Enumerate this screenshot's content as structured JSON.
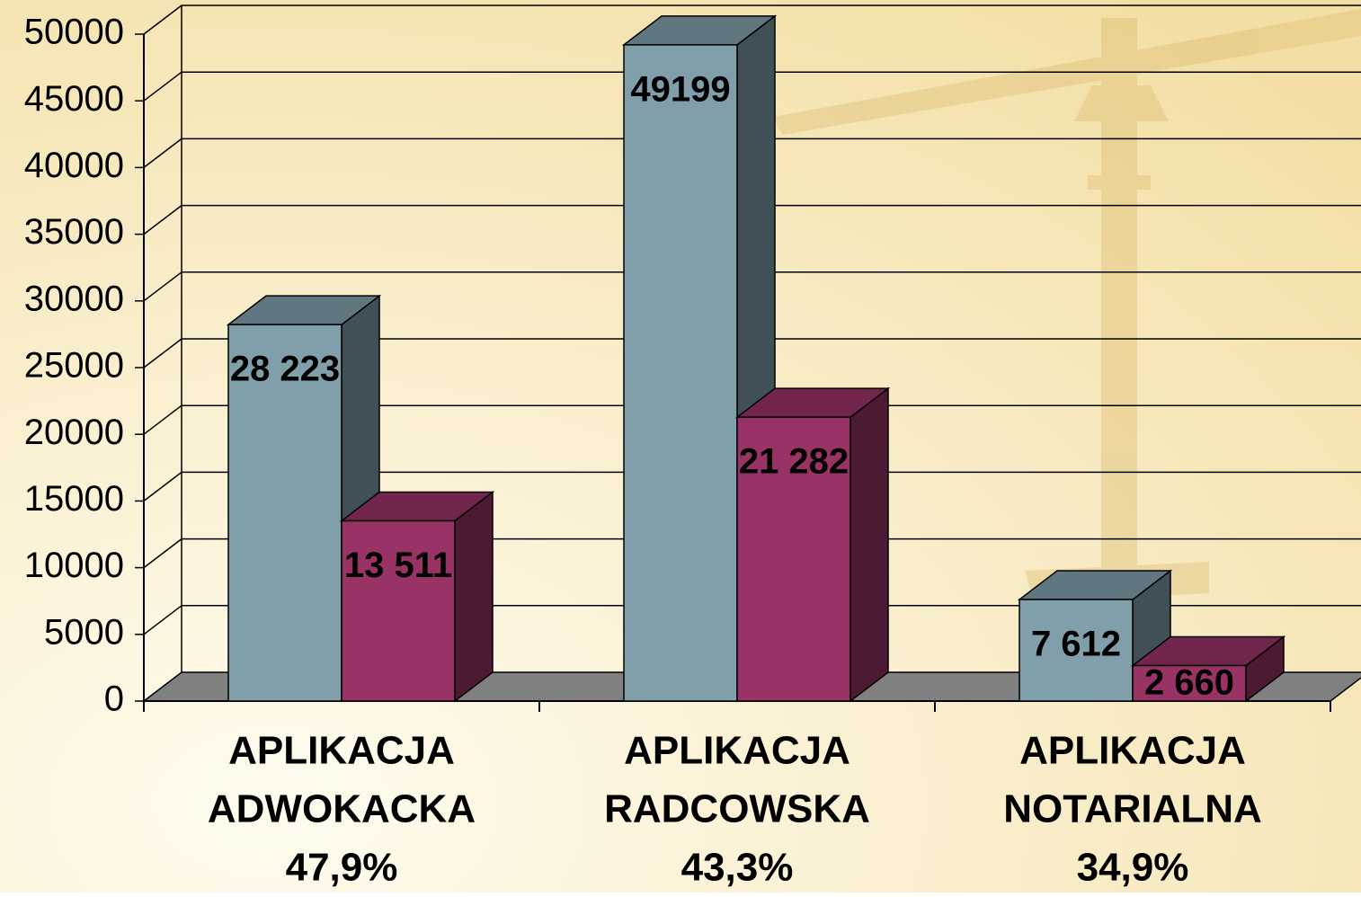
{
  "chart_data": {
    "type": "bar3d",
    "categories": [
      [
        "APLIKACJA",
        "ADWOKACKA",
        "47,9%"
      ],
      [
        "APLIKACJA",
        "RADCOWSKA",
        "43,3%"
      ],
      [
        "APLIKACJA",
        "NOTARIALNA",
        "34,9%"
      ]
    ],
    "series": [
      {
        "color": "#819fab",
        "values": [
          28223,
          49199,
          7612
        ],
        "value_labels": [
          "28 223",
          "49199",
          "7 612"
        ]
      },
      {
        "color": "#993366",
        "values": [
          13511,
          21282,
          2660
        ],
        "value_labels": [
          "13 511",
          "21 282",
          "2 660"
        ]
      }
    ],
    "ylim": [
      0,
      50000
    ],
    "yticks": [
      0,
      5000,
      10000,
      15000,
      20000,
      25000,
      30000,
      35000,
      40000,
      45000,
      50000
    ],
    "grid": true
  }
}
